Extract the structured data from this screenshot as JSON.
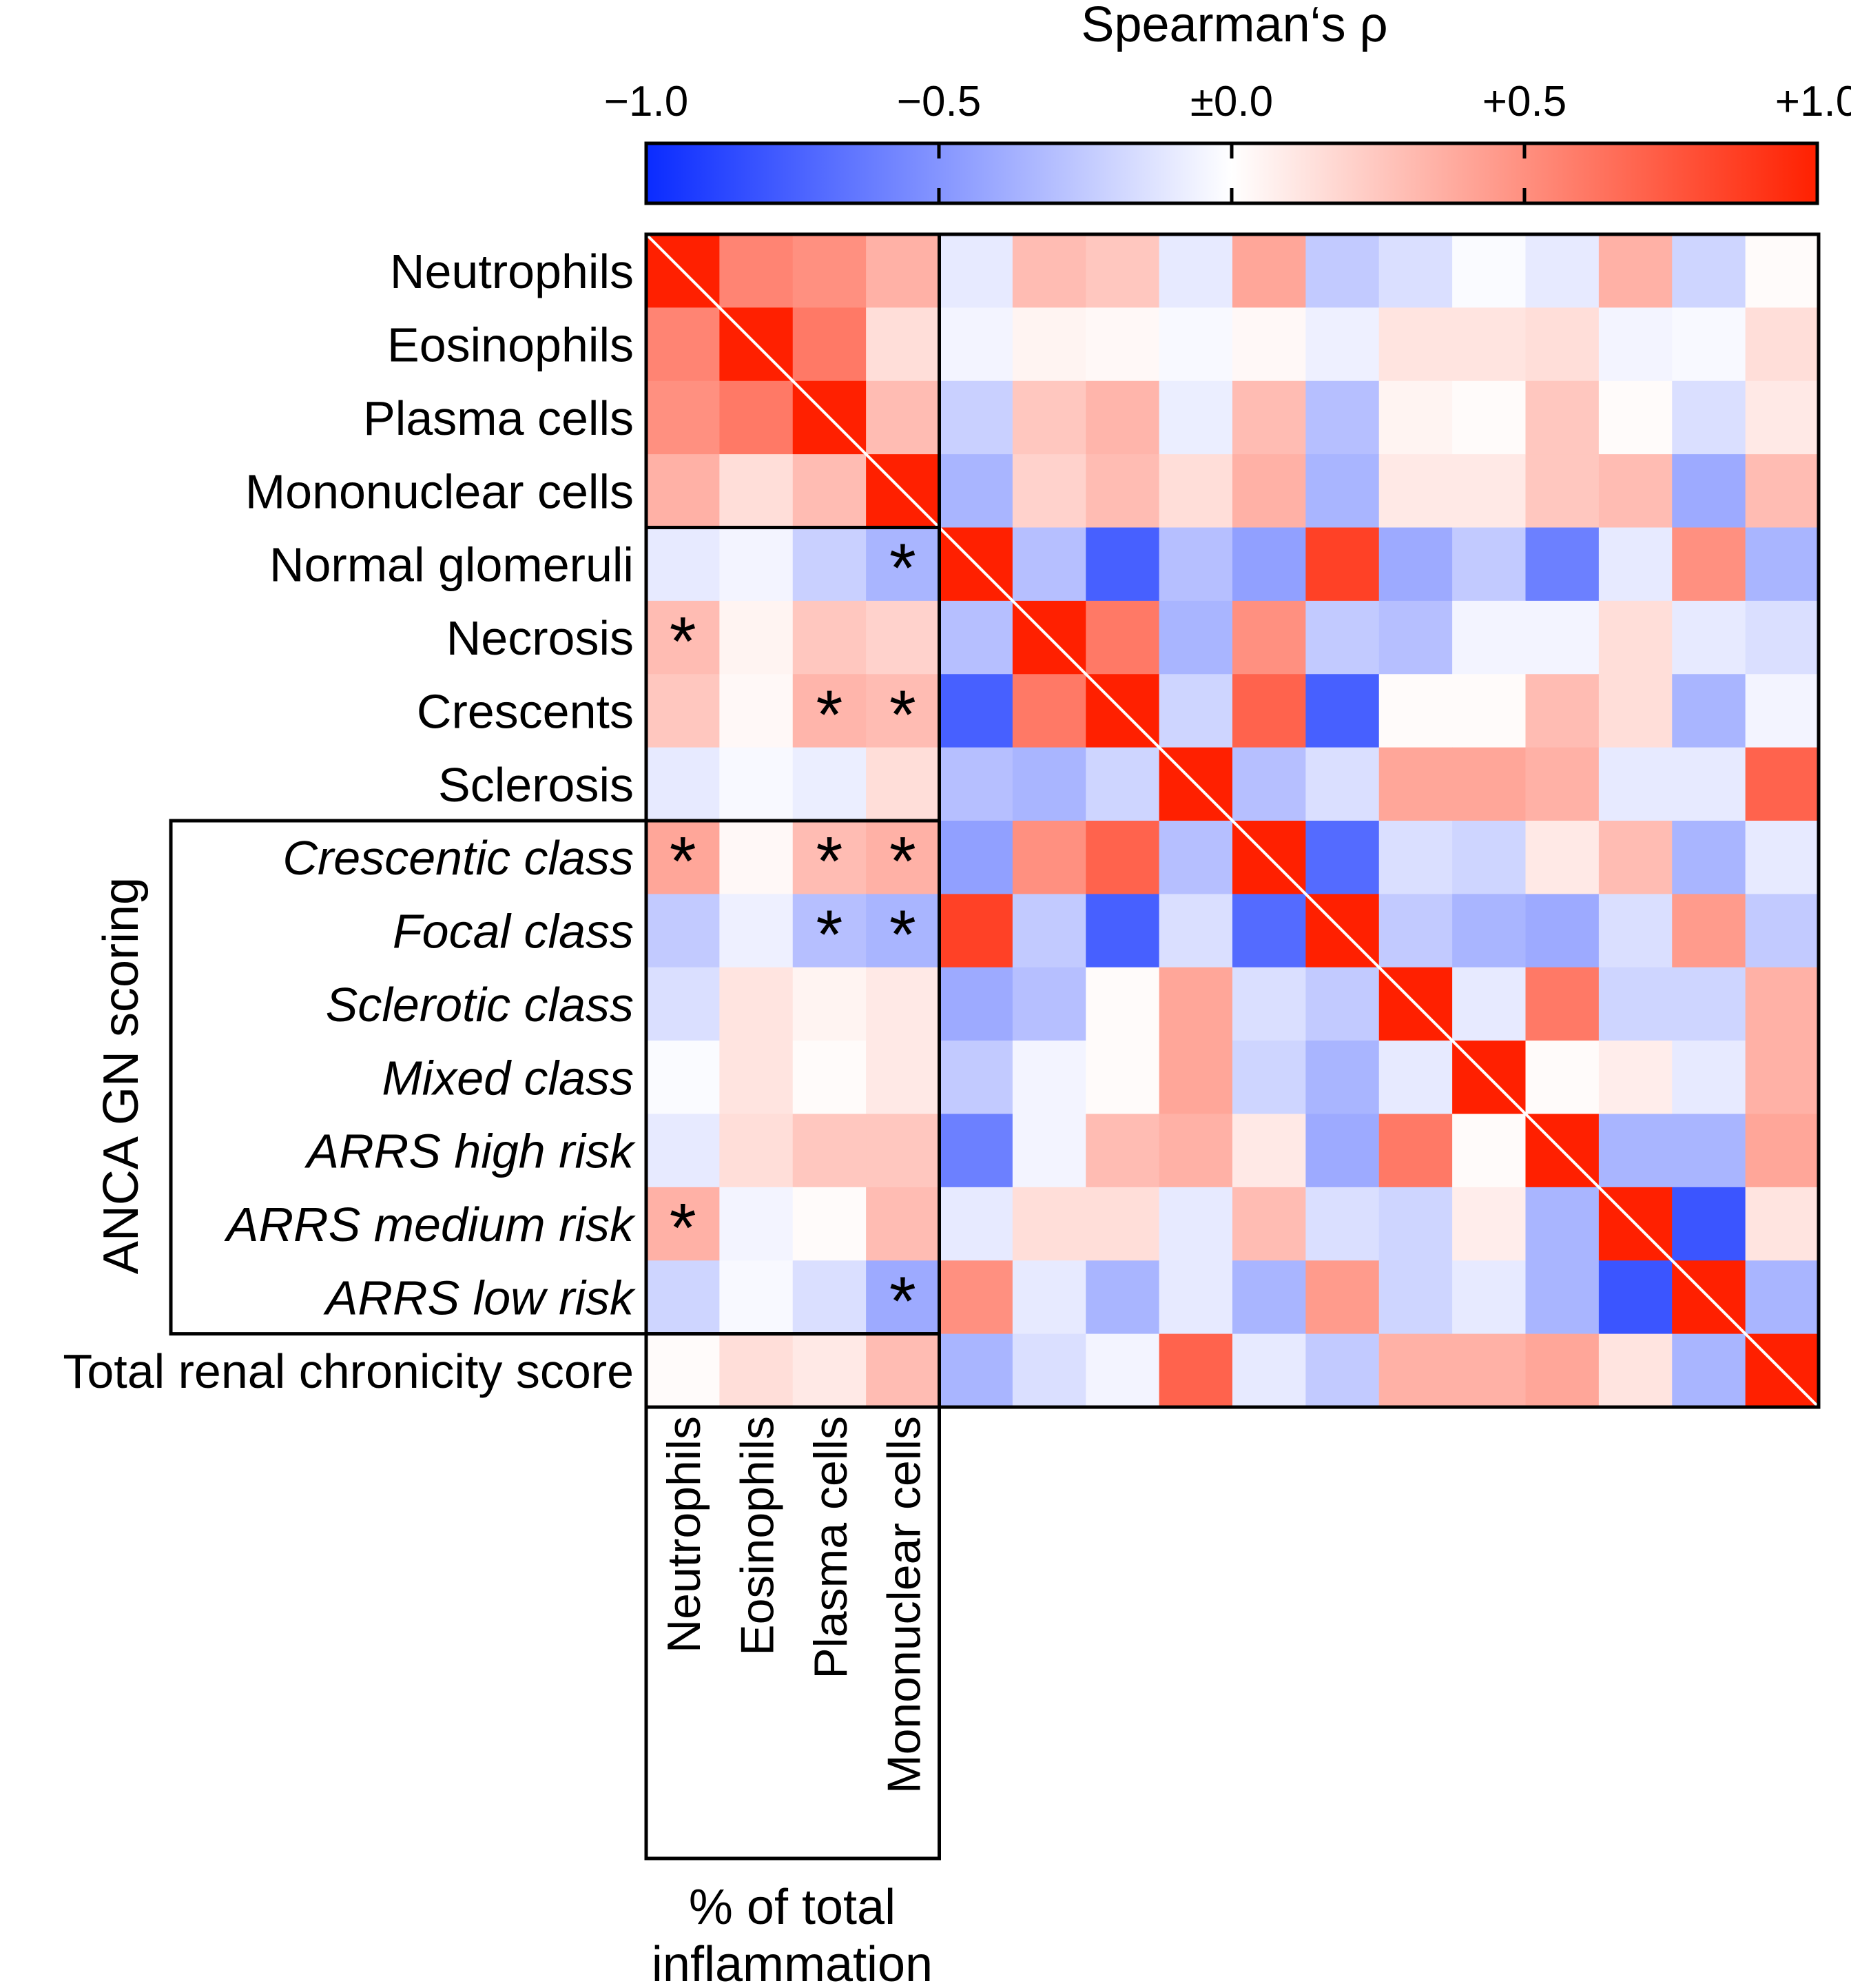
{
  "chart_data": {
    "type": "heatmap",
    "title": "Spearman‘s ρ",
    "colorbar": {
      "min": -1.0,
      "max": 1.0,
      "ticks": [
        -1.0,
        -0.5,
        0.0,
        0.5,
        1.0
      ],
      "tick_labels": [
        "−1.0",
        "−0.5",
        "±0.0",
        "+0.5",
        "+1.0"
      ],
      "colors": {
        "negative": "#0a2bff",
        "zero": "#ffffff",
        "positive": "#ff2000"
      }
    },
    "row_labels": [
      "Neutrophils",
      "Eosinophils",
      "Plasma cells",
      "Mononuclear cells",
      "Normal glomeruli",
      "Necrosis",
      "Crescents",
      "Sclerosis",
      "Crescentic class",
      "Focal class",
      "Sclerotic class",
      "Mixed class",
      "ARRS high risk",
      "ARRS medium risk",
      "ARRS low risk",
      "Total renal chronicity score"
    ],
    "italic_rows": [
      8,
      9,
      10,
      11,
      12,
      13,
      14
    ],
    "column_labels": [
      "Neutrophils",
      "Eosinophils",
      "Plasma cells",
      "Mononuclear cells"
    ],
    "group_label": "ANCA GN scoring",
    "xlabel_line1": "% of total",
    "xlabel_line2": "inflammation",
    "values": [
      [
        1.0,
        0.55,
        0.5,
        0.35,
        -0.1,
        0.3,
        0.25,
        -0.1,
        0.4,
        -0.25,
        -0.15,
        -0.02,
        -0.1,
        0.35,
        -0.2,
        0.02
      ],
      [
        0.55,
        1.0,
        0.6,
        0.15,
        -0.05,
        0.05,
        0.03,
        -0.03,
        0.03,
        -0.07,
        0.12,
        0.12,
        0.15,
        -0.05,
        -0.03,
        0.15
      ],
      [
        0.5,
        0.6,
        1.0,
        0.3,
        -0.22,
        0.25,
        0.33,
        -0.08,
        0.3,
        -0.3,
        0.05,
        0.02,
        0.25,
        0.02,
        -0.15,
        0.1
      ],
      [
        0.35,
        0.15,
        0.3,
        1.0,
        -0.35,
        0.2,
        0.3,
        0.15,
        0.35,
        -0.35,
        0.1,
        0.1,
        0.25,
        0.3,
        -0.4,
        0.3
      ],
      [
        -0.1,
        -0.05,
        -0.22,
        -0.35,
        1.0,
        -0.3,
        -0.75,
        -0.3,
        -0.45,
        0.85,
        -0.4,
        -0.25,
        -0.6,
        -0.1,
        0.5,
        -0.35
      ],
      [
        0.3,
        0.05,
        0.25,
        0.2,
        -0.3,
        1.0,
        0.6,
        -0.35,
        0.5,
        -0.25,
        -0.3,
        -0.05,
        -0.05,
        0.15,
        -0.1,
        -0.15
      ],
      [
        0.25,
        0.03,
        0.33,
        0.3,
        -0.75,
        0.6,
        1.0,
        -0.2,
        0.7,
        -0.75,
        0.02,
        0.02,
        0.3,
        0.15,
        -0.35,
        -0.05
      ],
      [
        -0.1,
        -0.03,
        -0.08,
        0.15,
        -0.3,
        -0.35,
        -0.2,
        1.0,
        -0.3,
        -0.15,
        0.4,
        0.4,
        0.35,
        -0.1,
        -0.1,
        0.7
      ],
      [
        0.4,
        0.03,
        0.3,
        0.35,
        -0.45,
        0.5,
        0.7,
        -0.3,
        1.0,
        -0.7,
        -0.15,
        -0.2,
        0.1,
        0.3,
        -0.35,
        -0.1
      ],
      [
        -0.25,
        -0.07,
        -0.3,
        -0.35,
        0.85,
        -0.25,
        -0.75,
        -0.15,
        -0.7,
        1.0,
        -0.25,
        -0.35,
        -0.4,
        -0.15,
        0.45,
        -0.25
      ],
      [
        -0.15,
        0.12,
        0.05,
        0.1,
        -0.4,
        -0.3,
        0.02,
        0.4,
        -0.15,
        -0.25,
        1.0,
        -0.1,
        0.6,
        -0.2,
        -0.2,
        0.35
      ],
      [
        -0.02,
        0.12,
        0.02,
        0.1,
        -0.25,
        -0.05,
        0.02,
        0.4,
        -0.2,
        -0.35,
        -0.1,
        1.0,
        0.02,
        0.08,
        -0.1,
        0.35
      ],
      [
        -0.1,
        0.15,
        0.25,
        0.25,
        -0.6,
        -0.05,
        0.3,
        0.35,
        0.1,
        -0.4,
        0.6,
        0.02,
        1.0,
        -0.35,
        -0.35,
        0.4
      ],
      [
        0.35,
        -0.05,
        0.02,
        0.3,
        -0.1,
        0.15,
        0.15,
        -0.1,
        0.3,
        -0.15,
        -0.2,
        0.08,
        -0.35,
        1.0,
        -0.8,
        0.12
      ],
      [
        -0.2,
        -0.03,
        -0.15,
        -0.4,
        0.5,
        -0.1,
        -0.35,
        -0.1,
        -0.35,
        0.45,
        -0.2,
        -0.1,
        -0.35,
        -0.8,
        1.0,
        -0.35
      ],
      [
        0.02,
        0.15,
        0.1,
        0.3,
        -0.35,
        -0.15,
        -0.05,
        0.7,
        -0.1,
        -0.25,
        0.35,
        0.35,
        0.4,
        0.12,
        -0.35,
        1.0
      ]
    ],
    "significance_marks": [
      {
        "row": 4,
        "col": 3,
        "text": "*"
      },
      {
        "row": 5,
        "col": 0,
        "text": "*"
      },
      {
        "row": 6,
        "col": 2,
        "text": "*"
      },
      {
        "row": 6,
        "col": 3,
        "text": "*"
      },
      {
        "row": 8,
        "col": 0,
        "text": "*"
      },
      {
        "row": 8,
        "col": 2,
        "text": "*"
      },
      {
        "row": 8,
        "col": 3,
        "text": "*"
      },
      {
        "row": 9,
        "col": 2,
        "text": "*"
      },
      {
        "row": 9,
        "col": 3,
        "text": "*"
      },
      {
        "row": 13,
        "col": 0,
        "text": "*"
      },
      {
        "row": 14,
        "col": 3,
        "text": "*"
      }
    ]
  }
}
